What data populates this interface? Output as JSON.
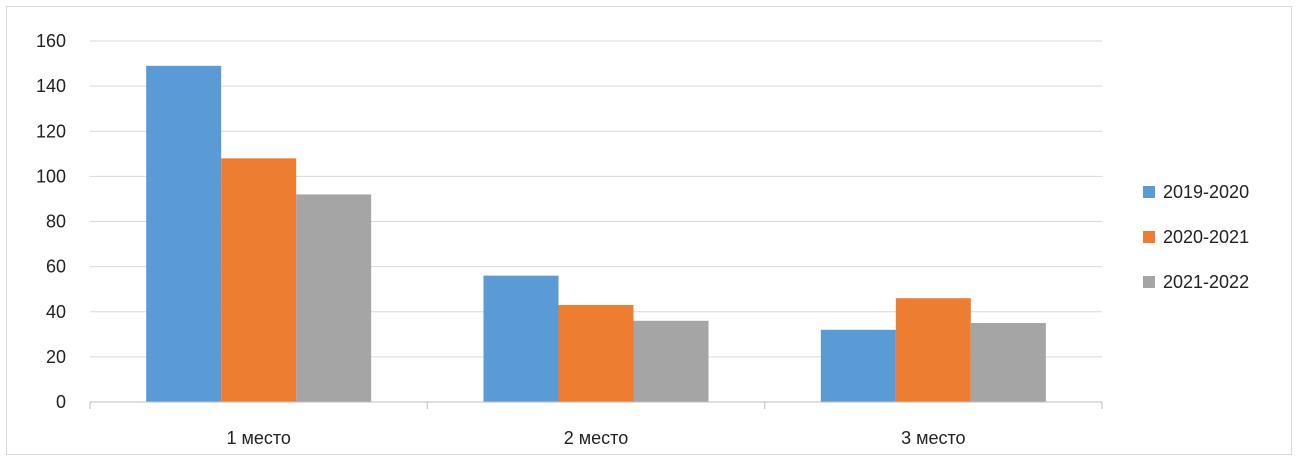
{
  "chart_data": {
    "type": "bar",
    "categories": [
      "1 место",
      "2 место",
      "3 место"
    ],
    "series": [
      {
        "name": "2019-2020",
        "color": "#5b9bd5",
        "values": [
          149,
          56,
          32
        ]
      },
      {
        "name": "2020-2021",
        "color": "#ed7d31",
        "values": [
          108,
          43,
          46
        ]
      },
      {
        "name": "2021-2022",
        "color": "#a5a5a5",
        "values": [
          92,
          36,
          35
        ]
      }
    ],
    "ylim": [
      0,
      160
    ],
    "yticks": [
      0,
      20,
      40,
      60,
      80,
      100,
      120,
      140,
      160
    ],
    "grid": true,
    "legend_position": "right",
    "title": "",
    "xlabel": "",
    "ylabel": ""
  }
}
